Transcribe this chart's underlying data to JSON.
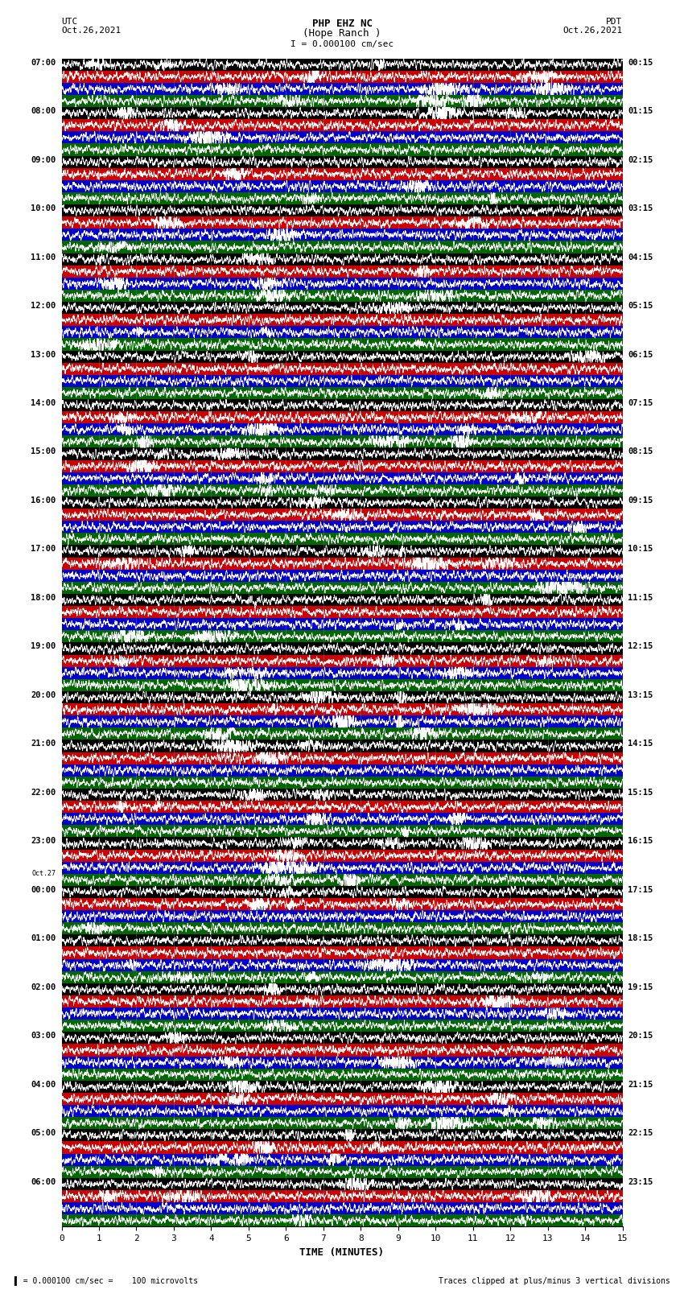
{
  "title_line1": "PHP EHZ NC",
  "title_line2": "(Hope Ranch )",
  "title_line3": "I = 0.000100 cm/sec",
  "left_label_top": "UTC",
  "left_label_date": "Oct.26,2021",
  "right_label_top": "PDT",
  "right_label_date": "Oct.26,2021",
  "xlabel": "TIME (MINUTES)",
  "bottom_left_note": "= 0.000100 cm/sec =    100 microvolts",
  "bottom_right_note": "Traces clipped at plus/minus 3 vertical divisions",
  "utc_times": [
    "07:00",
    "08:00",
    "09:00",
    "10:00",
    "11:00",
    "12:00",
    "13:00",
    "14:00",
    "15:00",
    "16:00",
    "17:00",
    "18:00",
    "19:00",
    "20:00",
    "21:00",
    "22:00",
    "23:00",
    "Oct.27\n00:00",
    "01:00",
    "02:00",
    "03:00",
    "04:00",
    "05:00",
    "06:00"
  ],
  "pdt_times": [
    "00:15",
    "01:15",
    "02:15",
    "03:15",
    "04:15",
    "05:15",
    "06:15",
    "07:15",
    "08:15",
    "09:15",
    "10:15",
    "11:15",
    "12:15",
    "13:15",
    "14:15",
    "15:15",
    "16:15",
    "17:15",
    "18:15",
    "19:15",
    "20:15",
    "21:15",
    "22:15",
    "23:15"
  ],
  "n_rows": 24,
  "traces_per_row": 4,
  "trace_colors": [
    "#000000",
    "#cc0000",
    "#0000cc",
    "#006600"
  ],
  "trace_colors_bright": [
    "#111111",
    "#dd0000",
    "#0044ff",
    "#008800"
  ],
  "x_ticks": [
    0,
    1,
    2,
    3,
    4,
    5,
    6,
    7,
    8,
    9,
    10,
    11,
    12,
    13,
    14,
    15
  ],
  "fig_width": 8.5,
  "fig_height": 16.13,
  "bg_color": "white",
  "noise_seed": 42
}
